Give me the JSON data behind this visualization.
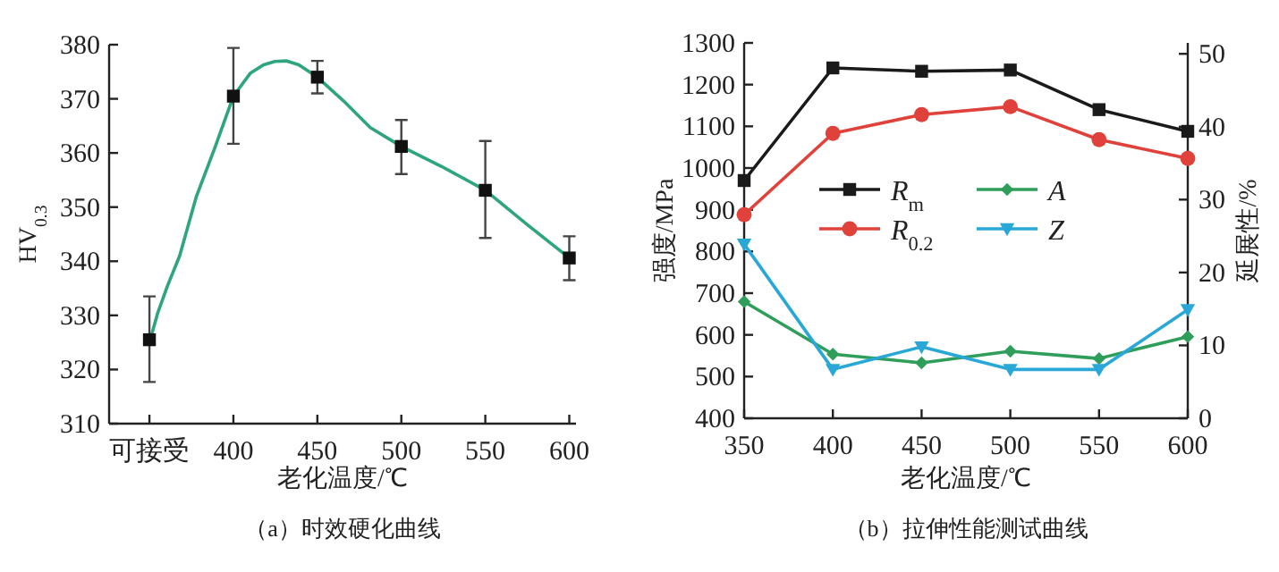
{
  "chart_data": [
    {
      "type": "scatter",
      "title": "（a）时效硬化曲线",
      "xlabel": "老化温度/℃",
      "ylabel": "HV$_{0.3}$",
      "xlim": [
        326,
        604
      ],
      "ylim": [
        310,
        380
      ],
      "xticks": [
        {
          "value": 350,
          "label": "可接受"
        },
        400,
        450,
        500,
        550,
        600
      ],
      "yticks": [
        310,
        320,
        330,
        340,
        350,
        360,
        370,
        380
      ],
      "grid": false,
      "legend": false,
      "series": [
        {
          "type": "line",
          "color": "#2ea57d",
          "marker": "none",
          "x": [
            350,
            355,
            360.7,
            368,
            378,
            389,
            400,
            410,
            418,
            424.7,
            431.8,
            438.9,
            450,
            467,
            481.5,
            500,
            524,
            550,
            574,
            600
          ],
          "values": [
            325,
            330.5,
            335.4,
            341,
            352,
            361,
            370.5,
            374.7,
            376.3,
            376.9,
            377,
            376.3,
            374,
            369.2,
            364.7,
            361.2,
            357.5,
            353.1,
            347,
            340.6
          ]
        },
        {
          "type": "scatter",
          "color": "#111111",
          "marker": "square",
          "x": [
            350,
            400,
            450,
            500,
            550,
            600
          ],
          "values": [
            325.5,
            370.5,
            374,
            361.2,
            353.1,
            340.6
          ],
          "errors": [
            [
              317.7,
              333.5
            ],
            [
              361.7,
              379.4
            ],
            [
              371,
              377
            ],
            [
              356.1,
              366.1
            ],
            [
              344.3,
              362.2
            ],
            [
              336.5,
              344.6
            ]
          ]
        }
      ]
    },
    {
      "type": "line",
      "title": "（b）拉伸性能测试曲线",
      "xlabel": "老化温度/℃",
      "ylabel": "强度/MPa",
      "y2label": "延展性/%",
      "xlim": [
        350,
        600
      ],
      "ylim": [
        400,
        1300
      ],
      "y2lim": [
        0,
        51.5
      ],
      "xticks": [
        350,
        400,
        450,
        500,
        550,
        600
      ],
      "yticks": [
        400,
        500,
        600,
        700,
        800,
        900,
        1000,
        1100,
        1200,
        1300
      ],
      "y2ticks": [
        0,
        10,
        20,
        30,
        40,
        50
      ],
      "grid": false,
      "legend": "center",
      "x": [
        350,
        400,
        450,
        500,
        550,
        600
      ],
      "series": [
        {
          "name": "*R*$_{m}$",
          "color": "#1a1a1a",
          "marker": "square",
          "values": [
            970,
            1240,
            1232,
            1235,
            1140,
            1088
          ]
        },
        {
          "name": "*R*$_{0.2}$",
          "color": "#e0413a",
          "marker": "circle",
          "values": [
            888,
            1083,
            1128,
            1147,
            1068,
            1023
          ]
        },
        {
          "name": "*A*",
          "color": "#2e9e5a",
          "marker": "diamond",
          "axis": "y2",
          "values": [
            16,
            8.8,
            7.6,
            9.2,
            8.2,
            11.2
          ]
        },
        {
          "name": "*Z*",
          "color": "#29a8d8",
          "marker": "triangle",
          "axis": "y2",
          "values": [
            23.9,
            6.7,
            9.8,
            6.7,
            6.7,
            14.9
          ]
        }
      ]
    }
  ]
}
